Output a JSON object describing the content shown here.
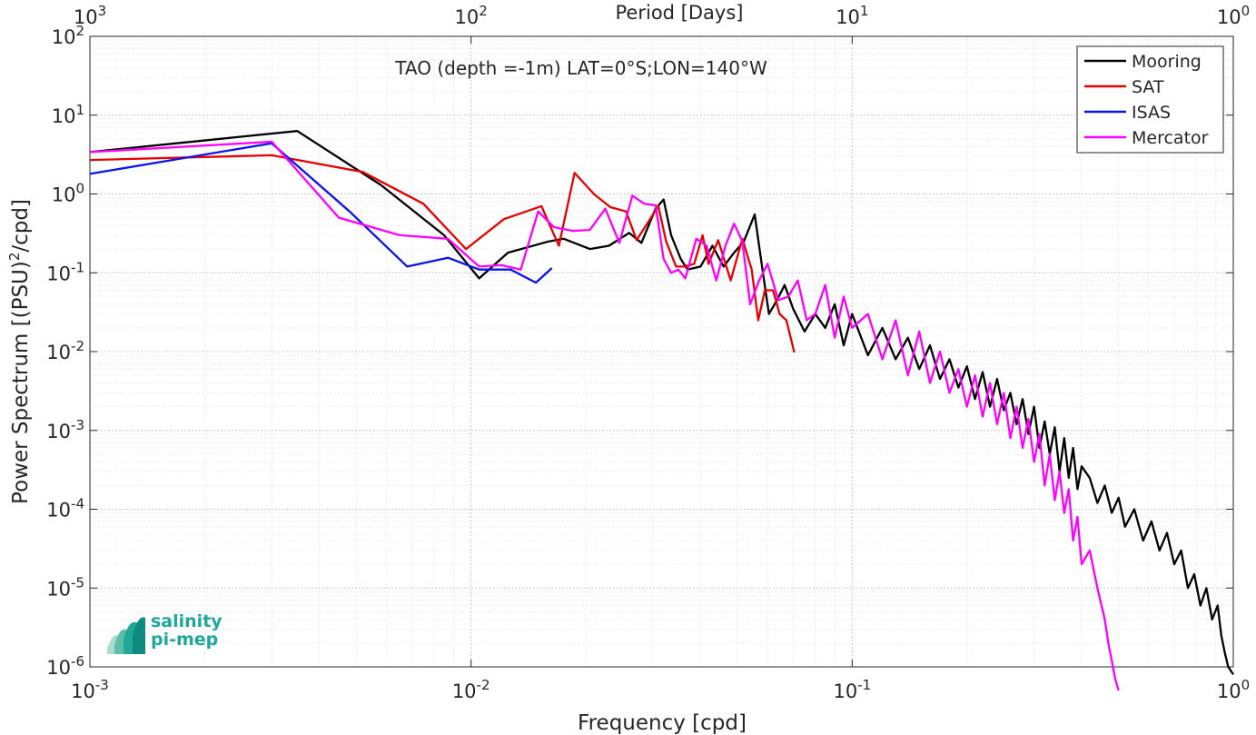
{
  "chart_data": {
    "type": "line",
    "title": "TAO (depth =-1m) LAT=0°S;LON=140°W",
    "xlabel": "Frequency [cpd]",
    "ylabel_main": "Power Spectrum [(PSU)",
    "ylabel_sup": "2",
    "ylabel_tail": "/cpd]",
    "top_axis_label": "Period [Days]",
    "x_scale": "log",
    "y_scale": "log",
    "xlim": [
      0.001,
      1
    ],
    "ylim": [
      1e-06,
      100
    ],
    "grid": true,
    "legend_position": "top-right",
    "x_ticks": [
      {
        "base": "10",
        "exp": "-3",
        "value": 0.001
      },
      {
        "base": "10",
        "exp": "-2",
        "value": 0.01
      },
      {
        "base": "10",
        "exp": "-1",
        "value": 0.1
      },
      {
        "base": "10",
        "exp": "0",
        "value": 1
      }
    ],
    "top_ticks": [
      {
        "base": "10",
        "exp": "3",
        "value": 0.001
      },
      {
        "base": "10",
        "exp": "2",
        "value": 0.01
      },
      {
        "base": "10",
        "exp": "1",
        "value": 0.1
      },
      {
        "base": "10",
        "exp": "0",
        "value": 1
      }
    ],
    "y_ticks": [
      {
        "base": "10",
        "exp": "2",
        "value": 100
      },
      {
        "base": "10",
        "exp": "1",
        "value": 10
      },
      {
        "base": "10",
        "exp": "0",
        "value": 1
      },
      {
        "base": "10",
        "exp": "-1",
        "value": 0.1
      },
      {
        "base": "10",
        "exp": "-2",
        "value": 0.01
      },
      {
        "base": "10",
        "exp": "-3",
        "value": 0.001
      },
      {
        "base": "10",
        "exp": "-4",
        "value": 0.0001
      },
      {
        "base": "10",
        "exp": "-5",
        "value": 1e-05
      },
      {
        "base": "10",
        "exp": "-6",
        "value": 1e-06
      }
    ],
    "series": [
      {
        "name": "Mooring",
        "color": "#000000",
        "x": [
          0.001,
          0.0035,
          0.0058,
          0.0085,
          0.0105,
          0.0125,
          0.016,
          0.0175,
          0.0205,
          0.023,
          0.026,
          0.028,
          0.0305,
          0.032,
          0.0335,
          0.0355,
          0.037,
          0.04,
          0.043,
          0.046,
          0.049,
          0.052,
          0.0555,
          0.058,
          0.0605,
          0.0635,
          0.0665,
          0.07,
          0.075,
          0.08,
          0.085,
          0.09,
          0.095,
          0.1,
          0.11,
          0.12,
          0.13,
          0.14,
          0.15,
          0.16,
          0.17,
          0.18,
          0.19,
          0.2,
          0.21,
          0.22,
          0.23,
          0.24,
          0.25,
          0.26,
          0.27,
          0.28,
          0.29,
          0.3,
          0.31,
          0.32,
          0.33,
          0.34,
          0.35,
          0.36,
          0.37,
          0.38,
          0.39,
          0.4,
          0.42,
          0.44,
          0.46,
          0.48,
          0.5,
          0.52,
          0.55,
          0.58,
          0.61,
          0.64,
          0.67,
          0.7,
          0.73,
          0.76,
          0.79,
          0.82,
          0.85,
          0.88,
          0.91,
          0.93,
          0.95,
          0.97,
          1.0
        ],
        "y": [
          3.4,
          6.3,
          1.3,
          0.3,
          0.085,
          0.18,
          0.25,
          0.27,
          0.2,
          0.22,
          0.32,
          0.24,
          0.65,
          0.85,
          0.3,
          0.15,
          0.11,
          0.12,
          0.22,
          0.12,
          0.18,
          0.25,
          0.55,
          0.12,
          0.03,
          0.045,
          0.07,
          0.035,
          0.018,
          0.03,
          0.02,
          0.04,
          0.012,
          0.03,
          0.009,
          0.02,
          0.008,
          0.015,
          0.006,
          0.012,
          0.0045,
          0.008,
          0.0035,
          0.0065,
          0.0025,
          0.0055,
          0.002,
          0.0045,
          0.0018,
          0.003,
          0.0012,
          0.0025,
          0.0009,
          0.002,
          0.0006,
          0.0013,
          0.0005,
          0.0011,
          0.0003,
          0.0008,
          0.00025,
          0.0006,
          0.00018,
          0.00035,
          0.00025,
          0.00012,
          0.0002,
          9e-05,
          0.00014,
          6e-05,
          0.0001,
          4e-05,
          7e-05,
          3e-05,
          5e-05,
          2e-05,
          3e-05,
          1e-05,
          1.5e-05,
          6e-06,
          1e-05,
          4e-06,
          6e-06,
          2.5e-06,
          1.5e-06,
          1e-06,
          8e-07
        ]
      },
      {
        "name": "SAT",
        "color": "#e60000",
        "x": [
          0.001,
          0.003,
          0.0052,
          0.0075,
          0.0097,
          0.0122,
          0.0153,
          0.017,
          0.0187,
          0.021,
          0.0232,
          0.0255,
          0.0272,
          0.031,
          0.0325,
          0.0345,
          0.0362,
          0.0385,
          0.0405,
          0.042,
          0.0445,
          0.048,
          0.0515,
          0.0545,
          0.0567,
          0.059,
          0.062,
          0.0645,
          0.0672,
          0.0705
        ],
        "y": [
          2.7,
          3.1,
          1.9,
          0.75,
          0.2,
          0.48,
          0.7,
          0.22,
          1.85,
          1.0,
          0.68,
          0.6,
          0.26,
          0.7,
          0.25,
          0.12,
          0.12,
          0.13,
          0.3,
          0.13,
          0.26,
          0.08,
          0.27,
          0.11,
          0.025,
          0.06,
          0.06,
          0.03,
          0.025,
          0.0098
        ]
      },
      {
        "name": "ISAS",
        "color": "#0a14e6",
        "x": [
          0.001,
          0.003,
          0.0048,
          0.0068,
          0.0087,
          0.0105,
          0.0127,
          0.0148,
          0.0163
        ],
        "y": [
          1.8,
          4.4,
          0.6,
          0.12,
          0.155,
          0.11,
          0.11,
          0.075,
          0.115
        ]
      },
      {
        "name": "Mercator",
        "color": "#ff00ff",
        "x": [
          0.001,
          0.003,
          0.0045,
          0.0065,
          0.0087,
          0.0105,
          0.012,
          0.0135,
          0.015,
          0.0165,
          0.0185,
          0.0205,
          0.0225,
          0.0245,
          0.0265,
          0.0285,
          0.0305,
          0.032,
          0.0335,
          0.035,
          0.0365,
          0.039,
          0.0415,
          0.044,
          0.0465,
          0.049,
          0.0515,
          0.054,
          0.057,
          0.06,
          0.064,
          0.068,
          0.072,
          0.076,
          0.08,
          0.085,
          0.09,
          0.095,
          0.1,
          0.11,
          0.12,
          0.13,
          0.14,
          0.15,
          0.16,
          0.17,
          0.18,
          0.19,
          0.2,
          0.21,
          0.22,
          0.23,
          0.24,
          0.25,
          0.26,
          0.27,
          0.28,
          0.29,
          0.3,
          0.31,
          0.32,
          0.33,
          0.34,
          0.35,
          0.36,
          0.37,
          0.38,
          0.39,
          0.4,
          0.42,
          0.44,
          0.46,
          0.47,
          0.48,
          0.49,
          0.5
        ],
        "y": [
          3.4,
          4.6,
          0.5,
          0.3,
          0.27,
          0.12,
          0.125,
          0.11,
          0.6,
          0.38,
          0.34,
          0.35,
          0.65,
          0.24,
          0.95,
          0.75,
          0.72,
          0.15,
          0.1,
          0.11,
          0.085,
          0.27,
          0.22,
          0.08,
          0.22,
          0.42,
          0.25,
          0.04,
          0.08,
          0.13,
          0.045,
          0.05,
          0.08,
          0.025,
          0.03,
          0.07,
          0.015,
          0.05,
          0.02,
          0.03,
          0.008,
          0.025,
          0.005,
          0.018,
          0.004,
          0.01,
          0.003,
          0.006,
          0.002,
          0.005,
          0.0015,
          0.004,
          0.0012,
          0.003,
          0.0008,
          0.002,
          0.0006,
          0.0014,
          0.0004,
          0.0009,
          0.0002,
          0.0005,
          0.00013,
          0.0003,
          9e-05,
          0.00018,
          4e-05,
          8e-05,
          2e-05,
          3e-05,
          1e-05,
          4e-06,
          2e-06,
          1.2e-06,
          7e-07,
          5e-07
        ]
      }
    ]
  },
  "logo": {
    "line1": "salinity",
    "line2": "pi-mep"
  }
}
